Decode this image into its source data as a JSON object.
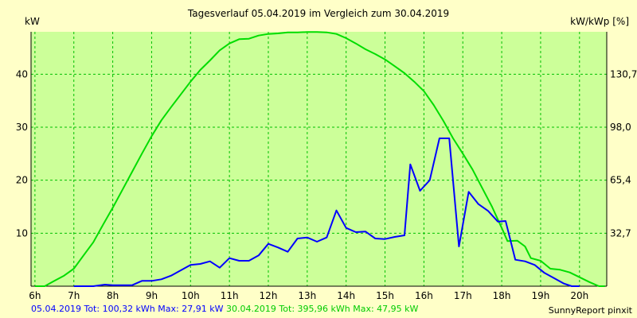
{
  "chart_data": {
    "type": "line",
    "title": "Tagesverlauf 05.04.2019 im Vergleich zum 30.04.2019",
    "ylabel_left": "kW",
    "ylabel_right": "kW/kWp [%]",
    "x_ticks": [
      "6h",
      "7h",
      "8h",
      "9h",
      "10h",
      "11h",
      "12h",
      "13h",
      "14h",
      "15h",
      "16h",
      "17h",
      "18h",
      "19h",
      "20h"
    ],
    "x_range": [
      5.9,
      20.7
    ],
    "y_ticks_left": [
      10,
      20,
      30,
      40
    ],
    "y_ticks_right": [
      "32,7",
      "65,4",
      "98,0",
      "130,7"
    ],
    "ylim": [
      0,
      48
    ],
    "grid": true,
    "colors": {
      "background": "#ffffc8",
      "plot_bg": "#ccff99",
      "grid": "#00c000",
      "axis": "#000000"
    },
    "series": [
      {
        "name": "05.04.2019",
        "color": "#0000ff",
        "points": [
          [
            7,
            0
          ],
          [
            7.5,
            0
          ],
          [
            7.8,
            0.3
          ],
          [
            8,
            0.2
          ],
          [
            8.5,
            0.2
          ],
          [
            8.75,
            1
          ],
          [
            9,
            1
          ],
          [
            9.25,
            1.3
          ],
          [
            9.5,
            2
          ],
          [
            9.75,
            3
          ],
          [
            10,
            4
          ],
          [
            10.25,
            4.2
          ],
          [
            10.5,
            4.7
          ],
          [
            10.75,
            3.5
          ],
          [
            11,
            5.3
          ],
          [
            11.25,
            4.8
          ],
          [
            11.5,
            4.8
          ],
          [
            11.75,
            5.8
          ],
          [
            12,
            8
          ],
          [
            12.25,
            7.3
          ],
          [
            12.5,
            6.5
          ],
          [
            12.75,
            9
          ],
          [
            13,
            9.2
          ],
          [
            13.25,
            8.4
          ],
          [
            13.5,
            9.2
          ],
          [
            13.75,
            14.3
          ],
          [
            14,
            11
          ],
          [
            14.25,
            10.2
          ],
          [
            14.5,
            10.3
          ],
          [
            14.75,
            9
          ],
          [
            15,
            8.9
          ],
          [
            15.25,
            9.3
          ],
          [
            15.5,
            9.6
          ],
          [
            15.65,
            23
          ],
          [
            15.9,
            18
          ],
          [
            16.15,
            20
          ],
          [
            16.4,
            27.9
          ],
          [
            16.65,
            27.9
          ],
          [
            16.9,
            7.5
          ],
          [
            17.15,
            17.8
          ],
          [
            17.4,
            15.5
          ],
          [
            17.65,
            14.2
          ],
          [
            17.9,
            12.2
          ],
          [
            18.1,
            12.3
          ],
          [
            18.35,
            5
          ],
          [
            18.6,
            4.7
          ],
          [
            18.85,
            4
          ],
          [
            19.1,
            2.5
          ],
          [
            19.35,
            1.5
          ],
          [
            19.6,
            0.5
          ],
          [
            19.8,
            0
          ],
          [
            20,
            0
          ]
        ]
      },
      {
        "name": "30.04.2019",
        "color": "#00dd00",
        "points": [
          [
            6,
            0
          ],
          [
            6.25,
            0
          ],
          [
            6.5,
            1
          ],
          [
            6.75,
            2
          ],
          [
            7,
            3.3
          ],
          [
            7.25,
            5.8
          ],
          [
            7.5,
            8.3
          ],
          [
            7.75,
            11.6
          ],
          [
            8,
            14.8
          ],
          [
            8.25,
            18.2
          ],
          [
            8.5,
            21.6
          ],
          [
            8.75,
            25
          ],
          [
            9,
            28.3
          ],
          [
            9.25,
            31.3
          ],
          [
            9.5,
            33.8
          ],
          [
            9.75,
            36.2
          ],
          [
            10,
            38.6
          ],
          [
            10.25,
            40.8
          ],
          [
            10.5,
            42.6
          ],
          [
            10.75,
            44.5
          ],
          [
            11,
            45.8
          ],
          [
            11.25,
            46.6
          ],
          [
            11.5,
            46.7
          ],
          [
            11.75,
            47.3
          ],
          [
            12,
            47.6
          ],
          [
            12.25,
            47.7
          ],
          [
            12.5,
            47.9
          ],
          [
            12.75,
            47.9
          ],
          [
            13,
            47.95
          ],
          [
            13.25,
            47.95
          ],
          [
            13.5,
            47.9
          ],
          [
            13.75,
            47.6
          ],
          [
            14,
            46.8
          ],
          [
            14.25,
            45.8
          ],
          [
            14.5,
            44.7
          ],
          [
            14.75,
            43.8
          ],
          [
            15,
            42.8
          ],
          [
            15.25,
            41.5
          ],
          [
            15.5,
            40.2
          ],
          [
            15.75,
            38.6
          ],
          [
            16,
            36.8
          ],
          [
            16.25,
            34.2
          ],
          [
            16.5,
            31.2
          ],
          [
            16.75,
            27.9
          ],
          [
            17,
            25
          ],
          [
            17.25,
            22
          ],
          [
            17.5,
            18.5
          ],
          [
            17.75,
            15
          ],
          [
            18,
            11
          ],
          [
            18.15,
            8.5
          ],
          [
            18.4,
            8.6
          ],
          [
            18.6,
            7.5
          ],
          [
            18.75,
            5.3
          ],
          [
            19,
            4.8
          ],
          [
            19.25,
            3.3
          ],
          [
            19.5,
            3.1
          ],
          [
            19.75,
            2.6
          ],
          [
            20,
            1.7
          ],
          [
            20.25,
            0.8
          ],
          [
            20.5,
            0
          ],
          [
            20.65,
            0
          ]
        ]
      }
    ]
  },
  "footer": {
    "series1_text": "05.04.2019 Tot: 100,32 kWh Max: 27,91 kW",
    "series2_text": " 30.04.2019 Tot: 395,96 kWh Max: 47,95 kW",
    "credit": "SunnyReport pinxit"
  }
}
